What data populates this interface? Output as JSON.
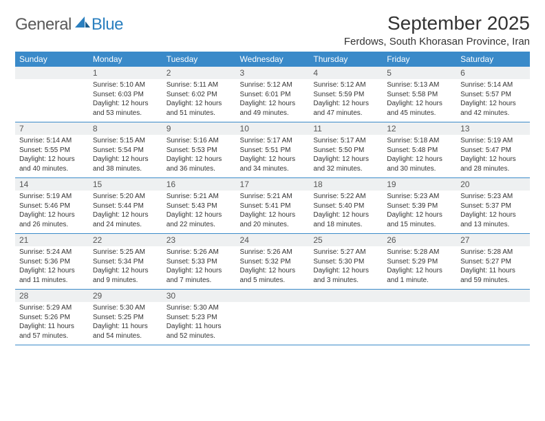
{
  "brand": {
    "part1": "General",
    "part2": "Blue"
  },
  "title": "September 2025",
  "location": "Ferdows, South Khorasan Province, Iran",
  "colors": {
    "header_bg": "#3a8ac9",
    "header_text": "#ffffff",
    "daynum_bg": "#eef0f1",
    "rule": "#3a8ac9",
    "logo_gray": "#5a5a5a",
    "logo_blue": "#2a7fbf"
  },
  "day_headers": [
    "Sunday",
    "Monday",
    "Tuesday",
    "Wednesday",
    "Thursday",
    "Friday",
    "Saturday"
  ],
  "weeks": [
    [
      {
        "n": "",
        "sr": "",
        "ss": "",
        "dl": ""
      },
      {
        "n": "1",
        "sr": "Sunrise: 5:10 AM",
        "ss": "Sunset: 6:03 PM",
        "dl": "Daylight: 12 hours and 53 minutes."
      },
      {
        "n": "2",
        "sr": "Sunrise: 5:11 AM",
        "ss": "Sunset: 6:02 PM",
        "dl": "Daylight: 12 hours and 51 minutes."
      },
      {
        "n": "3",
        "sr": "Sunrise: 5:12 AM",
        "ss": "Sunset: 6:01 PM",
        "dl": "Daylight: 12 hours and 49 minutes."
      },
      {
        "n": "4",
        "sr": "Sunrise: 5:12 AM",
        "ss": "Sunset: 5:59 PM",
        "dl": "Daylight: 12 hours and 47 minutes."
      },
      {
        "n": "5",
        "sr": "Sunrise: 5:13 AM",
        "ss": "Sunset: 5:58 PM",
        "dl": "Daylight: 12 hours and 45 minutes."
      },
      {
        "n": "6",
        "sr": "Sunrise: 5:14 AM",
        "ss": "Sunset: 5:57 PM",
        "dl": "Daylight: 12 hours and 42 minutes."
      }
    ],
    [
      {
        "n": "7",
        "sr": "Sunrise: 5:14 AM",
        "ss": "Sunset: 5:55 PM",
        "dl": "Daylight: 12 hours and 40 minutes."
      },
      {
        "n": "8",
        "sr": "Sunrise: 5:15 AM",
        "ss": "Sunset: 5:54 PM",
        "dl": "Daylight: 12 hours and 38 minutes."
      },
      {
        "n": "9",
        "sr": "Sunrise: 5:16 AM",
        "ss": "Sunset: 5:53 PM",
        "dl": "Daylight: 12 hours and 36 minutes."
      },
      {
        "n": "10",
        "sr": "Sunrise: 5:17 AM",
        "ss": "Sunset: 5:51 PM",
        "dl": "Daylight: 12 hours and 34 minutes."
      },
      {
        "n": "11",
        "sr": "Sunrise: 5:17 AM",
        "ss": "Sunset: 5:50 PM",
        "dl": "Daylight: 12 hours and 32 minutes."
      },
      {
        "n": "12",
        "sr": "Sunrise: 5:18 AM",
        "ss": "Sunset: 5:48 PM",
        "dl": "Daylight: 12 hours and 30 minutes."
      },
      {
        "n": "13",
        "sr": "Sunrise: 5:19 AM",
        "ss": "Sunset: 5:47 PM",
        "dl": "Daylight: 12 hours and 28 minutes."
      }
    ],
    [
      {
        "n": "14",
        "sr": "Sunrise: 5:19 AM",
        "ss": "Sunset: 5:46 PM",
        "dl": "Daylight: 12 hours and 26 minutes."
      },
      {
        "n": "15",
        "sr": "Sunrise: 5:20 AM",
        "ss": "Sunset: 5:44 PM",
        "dl": "Daylight: 12 hours and 24 minutes."
      },
      {
        "n": "16",
        "sr": "Sunrise: 5:21 AM",
        "ss": "Sunset: 5:43 PM",
        "dl": "Daylight: 12 hours and 22 minutes."
      },
      {
        "n": "17",
        "sr": "Sunrise: 5:21 AM",
        "ss": "Sunset: 5:41 PM",
        "dl": "Daylight: 12 hours and 20 minutes."
      },
      {
        "n": "18",
        "sr": "Sunrise: 5:22 AM",
        "ss": "Sunset: 5:40 PM",
        "dl": "Daylight: 12 hours and 18 minutes."
      },
      {
        "n": "19",
        "sr": "Sunrise: 5:23 AM",
        "ss": "Sunset: 5:39 PM",
        "dl": "Daylight: 12 hours and 15 minutes."
      },
      {
        "n": "20",
        "sr": "Sunrise: 5:23 AM",
        "ss": "Sunset: 5:37 PM",
        "dl": "Daylight: 12 hours and 13 minutes."
      }
    ],
    [
      {
        "n": "21",
        "sr": "Sunrise: 5:24 AM",
        "ss": "Sunset: 5:36 PM",
        "dl": "Daylight: 12 hours and 11 minutes."
      },
      {
        "n": "22",
        "sr": "Sunrise: 5:25 AM",
        "ss": "Sunset: 5:34 PM",
        "dl": "Daylight: 12 hours and 9 minutes."
      },
      {
        "n": "23",
        "sr": "Sunrise: 5:26 AM",
        "ss": "Sunset: 5:33 PM",
        "dl": "Daylight: 12 hours and 7 minutes."
      },
      {
        "n": "24",
        "sr": "Sunrise: 5:26 AM",
        "ss": "Sunset: 5:32 PM",
        "dl": "Daylight: 12 hours and 5 minutes."
      },
      {
        "n": "25",
        "sr": "Sunrise: 5:27 AM",
        "ss": "Sunset: 5:30 PM",
        "dl": "Daylight: 12 hours and 3 minutes."
      },
      {
        "n": "26",
        "sr": "Sunrise: 5:28 AM",
        "ss": "Sunset: 5:29 PM",
        "dl": "Daylight: 12 hours and 1 minute."
      },
      {
        "n": "27",
        "sr": "Sunrise: 5:28 AM",
        "ss": "Sunset: 5:27 PM",
        "dl": "Daylight: 11 hours and 59 minutes."
      }
    ],
    [
      {
        "n": "28",
        "sr": "Sunrise: 5:29 AM",
        "ss": "Sunset: 5:26 PM",
        "dl": "Daylight: 11 hours and 57 minutes."
      },
      {
        "n": "29",
        "sr": "Sunrise: 5:30 AM",
        "ss": "Sunset: 5:25 PM",
        "dl": "Daylight: 11 hours and 54 minutes."
      },
      {
        "n": "30",
        "sr": "Sunrise: 5:30 AM",
        "ss": "Sunset: 5:23 PM",
        "dl": "Daylight: 11 hours and 52 minutes."
      },
      {
        "n": "",
        "sr": "",
        "ss": "",
        "dl": ""
      },
      {
        "n": "",
        "sr": "",
        "ss": "",
        "dl": ""
      },
      {
        "n": "",
        "sr": "",
        "ss": "",
        "dl": ""
      },
      {
        "n": "",
        "sr": "",
        "ss": "",
        "dl": ""
      }
    ]
  ]
}
